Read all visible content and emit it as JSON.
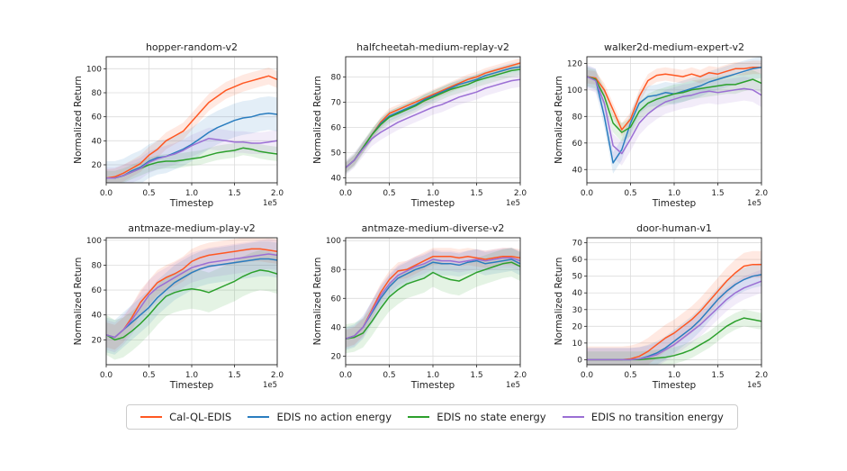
{
  "chart_data": [
    {
      "type": "line",
      "title": "hopper-random-v2",
      "xlabel": "Timestep",
      "ylabel": "Normalized Return",
      "xscale_label": "1e5",
      "xlim": [
        0,
        2.0
      ],
      "ylim": [
        5,
        110
      ],
      "xticks": [
        "0.0",
        "0.5",
        "1.0",
        "1.5",
        "2.0"
      ],
      "yticks": [
        20,
        40,
        60,
        80,
        100
      ],
      "x": [
        0,
        0.1,
        0.2,
        0.3,
        0.4,
        0.5,
        0.6,
        0.7,
        0.8,
        0.9,
        1.0,
        1.1,
        1.2,
        1.3,
        1.4,
        1.5,
        1.6,
        1.7,
        1.8,
        1.9,
        2.0
      ],
      "series": [
        {
          "name": "Cal-QL-EDIS",
          "values": [
            9,
            10,
            13,
            17,
            21,
            28,
            33,
            40,
            44,
            48,
            56,
            64,
            72,
            77,
            82,
            85,
            88,
            90,
            92,
            94,
            91
          ],
          "band": 7
        },
        {
          "name": "EDIS no action energy",
          "values": [
            9,
            9,
            11,
            15,
            18,
            23,
            26,
            27,
            30,
            33,
            37,
            42,
            47,
            51,
            54,
            57,
            59,
            60,
            62,
            63,
            62
          ],
          "band": 14
        },
        {
          "name": "EDIS no state energy",
          "values": [
            9,
            9,
            11,
            14,
            17,
            20,
            22,
            23,
            23,
            24,
            25,
            26,
            28,
            30,
            31,
            32,
            34,
            33,
            31,
            30,
            29
          ],
          "band": 6
        },
        {
          "name": "EDIS no transition energy",
          "values": [
            9,
            9,
            11,
            14,
            17,
            22,
            25,
            27,
            29,
            32,
            36,
            39,
            42,
            41,
            40,
            39,
            39,
            38,
            38,
            39,
            40
          ],
          "band": 9
        }
      ]
    },
    {
      "type": "line",
      "title": "halfcheetah-medium-replay-v2",
      "xlabel": "Timestep",
      "ylabel": "Normalized Return",
      "xscale_label": "1e5",
      "xlim": [
        0,
        2.0
      ],
      "ylim": [
        38,
        88
      ],
      "xticks": [
        "0.0",
        "0.5",
        "1.0",
        "1.5",
        "2.0"
      ],
      "yticks": [
        40,
        50,
        60,
        70,
        80
      ],
      "x": [
        0,
        0.1,
        0.2,
        0.3,
        0.4,
        0.5,
        0.6,
        0.7,
        0.8,
        0.9,
        1.0,
        1.1,
        1.2,
        1.3,
        1.4,
        1.5,
        1.6,
        1.7,
        1.8,
        1.9,
        2.0
      ],
      "series": [
        {
          "name": "Cal-QL-EDIS",
          "values": [
            44,
            47,
            52,
            57,
            62,
            65.5,
            67,
            68.5,
            70,
            71.5,
            73,
            74.5,
            76,
            77.5,
            79,
            80,
            81.5,
            82.5,
            83.5,
            84.5,
            85.5
          ],
          "band": 2
        },
        {
          "name": "EDIS no action energy",
          "values": [
            44,
            47,
            52,
            57,
            61.5,
            64.5,
            66,
            67.5,
            69,
            71,
            72.5,
            74,
            75.5,
            77,
            78,
            79,
            80.5,
            81.5,
            82.5,
            83.5,
            84
          ],
          "band": 2
        },
        {
          "name": "EDIS no state energy",
          "values": [
            44,
            47,
            52,
            57,
            61,
            64,
            65.5,
            67,
            68.5,
            70.5,
            72,
            73.5,
            75,
            76,
            77,
            78.5,
            79.5,
            80.5,
            81.5,
            82.5,
            83
          ],
          "band": 2.5
        },
        {
          "name": "EDIS no transition energy",
          "values": [
            44,
            47,
            51.5,
            55.5,
            58,
            60,
            62,
            63.5,
            65,
            66.5,
            68,
            69,
            70.5,
            72,
            73,
            74,
            75.5,
            76.5,
            77.5,
            78.5,
            79
          ],
          "band": 3
        }
      ]
    },
    {
      "type": "line",
      "title": "walker2d-medium-expert-v2",
      "xlabel": "Timestep",
      "ylabel": "Normalized Return",
      "xscale_label": "1e5",
      "xlim": [
        0,
        2.0
      ],
      "ylim": [
        30,
        125
      ],
      "xticks": [
        "0.0",
        "0.5",
        "1.0",
        "1.5",
        "2.0"
      ],
      "yticks": [
        40,
        60,
        80,
        100,
        120
      ],
      "x": [
        0,
        0.1,
        0.2,
        0.3,
        0.4,
        0.5,
        0.6,
        0.7,
        0.8,
        0.9,
        1.0,
        1.1,
        1.2,
        1.3,
        1.4,
        1.5,
        1.6,
        1.7,
        1.8,
        1.9,
        2.0
      ],
      "series": [
        {
          "name": "Cal-QL-EDIS",
          "values": [
            110,
            109,
            100,
            85,
            70,
            78,
            95,
            107,
            111,
            112,
            111,
            110,
            112,
            110,
            113,
            112,
            114,
            116,
            116,
            117,
            117
          ],
          "band": 5
        },
        {
          "name": "EDIS no action energy",
          "values": [
            110,
            108,
            80,
            45,
            55,
            75,
            90,
            95,
            96,
            98,
            97,
            99,
            101,
            103,
            106,
            108,
            110,
            112,
            114,
            116,
            117
          ],
          "band": 8
        },
        {
          "name": "EDIS no state energy",
          "values": [
            110,
            108,
            95,
            75,
            68,
            72,
            84,
            90,
            93,
            95,
            97,
            98,
            100,
            101,
            102,
            103,
            104,
            104,
            106,
            108,
            105
          ],
          "band": 7
        },
        {
          "name": "EDIS no transition energy",
          "values": [
            110,
            107,
            90,
            58,
            52,
            63,
            75,
            82,
            87,
            91,
            93,
            95,
            96,
            98,
            99,
            98,
            99,
            100,
            101,
            100,
            96
          ],
          "band": 9
        }
      ]
    },
    {
      "type": "line",
      "title": "antmaze-medium-play-v2",
      "xlabel": "Timestep",
      "ylabel": "Normalized Return",
      "xscale_label": "1e5",
      "xlim": [
        0,
        2.0
      ],
      "ylim": [
        0,
        102
      ],
      "xticks": [
        "0.0",
        "0.5",
        "1.0",
        "1.5",
        "2.0"
      ],
      "yticks": [
        20,
        40,
        60,
        80,
        100
      ],
      "x": [
        0,
        0.1,
        0.2,
        0.3,
        0.4,
        0.5,
        0.6,
        0.7,
        0.8,
        0.9,
        1.0,
        1.1,
        1.2,
        1.3,
        1.4,
        1.5,
        1.6,
        1.7,
        1.8,
        1.9,
        2.0
      ],
      "series": [
        {
          "name": "Cal-QL-EDIS",
          "values": [
            24,
            22,
            28,
            38,
            50,
            58,
            66,
            70,
            73,
            77,
            83,
            86,
            88,
            89,
            90,
            91,
            92,
            93,
            93,
            92,
            91
          ],
          "band": 10
        },
        {
          "name": "EDIS no action energy",
          "values": [
            24,
            22,
            28,
            34,
            40,
            46,
            54,
            60,
            66,
            70,
            74,
            77,
            79,
            80,
            81,
            82,
            83,
            84,
            85,
            85,
            84
          ],
          "band": 14
        },
        {
          "name": "EDIS no state energy",
          "values": [
            24,
            20,
            22,
            27,
            33,
            40,
            48,
            55,
            58,
            60,
            61,
            60,
            58,
            61,
            64,
            67,
            71,
            74,
            76,
            75,
            73
          ],
          "band": 16
        },
        {
          "name": "EDIS no transition energy",
          "values": [
            24,
            22,
            28,
            36,
            46,
            56,
            62,
            66,
            70,
            74,
            78,
            80,
            82,
            83,
            84,
            85,
            86,
            87,
            88,
            89,
            88
          ],
          "band": 12
        }
      ]
    },
    {
      "type": "line",
      "title": "antmaze-medium-diverse-v2",
      "xlabel": "Timestep",
      "ylabel": "Normalized Return",
      "xscale_label": "1e5",
      "xlim": [
        0,
        2.0
      ],
      "ylim": [
        14,
        102
      ],
      "xticks": [
        "0.0",
        "0.5",
        "1.0",
        "1.5",
        "2.0"
      ],
      "yticks": [
        20,
        40,
        60,
        80,
        100
      ],
      "x": [
        0,
        0.1,
        0.2,
        0.3,
        0.4,
        0.5,
        0.6,
        0.7,
        0.8,
        0.9,
        1.0,
        1.1,
        1.2,
        1.3,
        1.4,
        1.5,
        1.6,
        1.7,
        1.8,
        1.9,
        2.0
      ],
      "series": [
        {
          "name": "Cal-QL-EDIS",
          "values": [
            32,
            34,
            40,
            52,
            64,
            73,
            79,
            80,
            83,
            86,
            89,
            89,
            89,
            88,
            89,
            88,
            87,
            88,
            89,
            89,
            88
          ],
          "band": 6
        },
        {
          "name": "EDIS no action energy",
          "values": [
            32,
            34,
            40,
            50,
            60,
            68,
            74,
            77,
            80,
            82,
            85,
            84,
            84,
            83,
            85,
            86,
            84,
            85,
            86,
            87,
            84
          ],
          "band": 8
        },
        {
          "name": "EDIS no state energy",
          "values": [
            32,
            33,
            36,
            44,
            53,
            61,
            66,
            70,
            72,
            74,
            78,
            75,
            73,
            72,
            75,
            78,
            80,
            82,
            84,
            85,
            82
          ],
          "band": 10
        },
        {
          "name": "EDIS no transition energy",
          "values": [
            32,
            34,
            40,
            51,
            62,
            70,
            76,
            79,
            82,
            84,
            87,
            86,
            86,
            85,
            86,
            87,
            86,
            87,
            88,
            88,
            86
          ],
          "band": 7
        }
      ]
    },
    {
      "type": "line",
      "title": "door-human-v1",
      "xlabel": "Timestep",
      "ylabel": "Normalized Return",
      "xscale_label": "1e5",
      "xlim": [
        0,
        2.0
      ],
      "ylim": [
        -3,
        73
      ],
      "xticks": [
        "0.0",
        "0.5",
        "1.0",
        "1.5",
        "2.0"
      ],
      "yticks": [
        0,
        10,
        20,
        30,
        40,
        50,
        60,
        70
      ],
      "x": [
        0,
        0.1,
        0.2,
        0.3,
        0.4,
        0.5,
        0.6,
        0.7,
        0.8,
        0.9,
        1.0,
        1.1,
        1.2,
        1.3,
        1.4,
        1.5,
        1.6,
        1.7,
        1.8,
        1.9,
        2.0
      ],
      "series": [
        {
          "name": "Cal-QL-EDIS",
          "values": [
            0,
            0,
            0,
            0,
            0,
            0.5,
            2,
            5,
            9,
            13,
            16,
            20,
            24,
            29,
            35,
            41,
            47,
            52,
            56,
            57,
            57
          ],
          "band": 8
        },
        {
          "name": "EDIS no action energy",
          "values": [
            0,
            0,
            0,
            0,
            0,
            0,
            0.5,
            2,
            4,
            7,
            11,
            15,
            19,
            24,
            30,
            36,
            41,
            45,
            48,
            50,
            51
          ],
          "band": 7
        },
        {
          "name": "EDIS no state energy",
          "values": [
            0,
            0,
            0,
            0,
            0,
            0,
            0,
            0.5,
            1,
            1.5,
            2.5,
            4,
            6,
            9,
            12,
            16,
            20,
            23,
            25,
            24,
            23
          ],
          "band": 5
        },
        {
          "name": "EDIS no transition energy",
          "values": [
            0,
            0,
            0,
            0,
            0,
            0,
            0.5,
            1.5,
            3,
            6,
            9,
            13,
            17,
            21,
            26,
            31,
            36,
            40,
            43,
            45,
            47
          ],
          "band": 7
        }
      ]
    }
  ],
  "legend": {
    "placement": "bottom-center",
    "items": [
      {
        "label": "Cal-QL-EDIS",
        "color": "#ff5722"
      },
      {
        "label": "EDIS no action energy",
        "color": "#2a7dbf"
      },
      {
        "label": "EDIS no state energy",
        "color": "#2ca02c"
      },
      {
        "label": "EDIS no transition energy",
        "color": "#9b6fd4"
      }
    ]
  }
}
